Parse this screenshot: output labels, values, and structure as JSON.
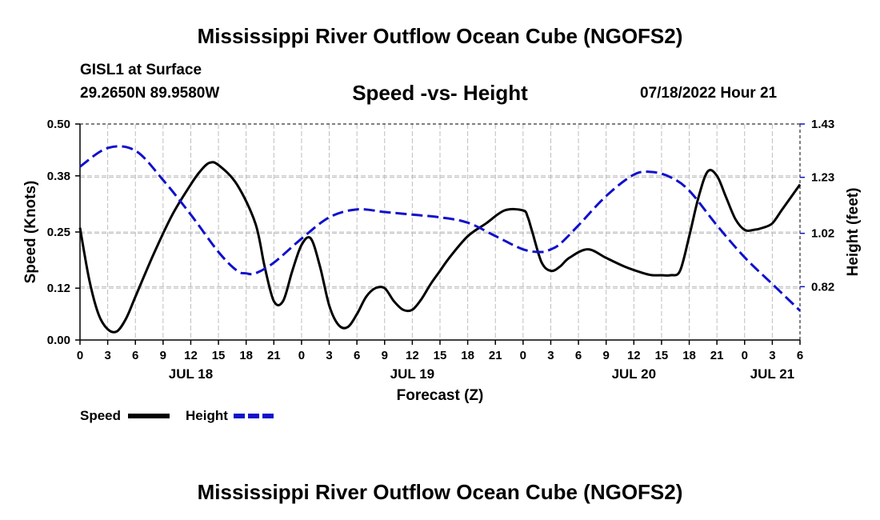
{
  "header": {
    "title": "Mississippi River Outflow Ocean Cube (NGOFS2)",
    "title_repeat": "Mississippi River Outflow Ocean Cube (NGOFS2)",
    "station": "GISL1 at Surface",
    "coords": "29.2650N  89.9580W",
    "timestamp": "07/18/2022 Hour 21"
  },
  "colors": {
    "speed": "#000000",
    "height": "#1010cc",
    "grid": "#bdbdbd"
  },
  "chart_data": {
    "type": "line",
    "title": "Speed -vs- Height",
    "xlabel": "Forecast (Z)",
    "ylabel": "Speed (Knots)",
    "y2label": "Height (feet)",
    "x_hours_range": [
      0,
      78
    ],
    "ylim": [
      0,
      0.5
    ],
    "y2lim": [
      0.62,
      1.43
    ],
    "y_ticks": [
      "0.00",
      "0.12",
      "0.25",
      "0.38",
      "0.50"
    ],
    "y2_ticks": [
      "0.82",
      "1.02",
      "1.23",
      "1.43"
    ],
    "y2_tick_values": [
      0.82,
      1.02,
      1.23,
      1.43
    ],
    "x_tick_labels": [
      "0",
      "3",
      "6",
      "9",
      "12",
      "15",
      "18",
      "21",
      "0",
      "3",
      "6",
      "9",
      "12",
      "15",
      "18",
      "21",
      "0",
      "3",
      "6",
      "9",
      "12",
      "15",
      "18",
      "21",
      "0",
      "3",
      "6"
    ],
    "date_labels": [
      {
        "label": "JUL 18",
        "hour": 12
      },
      {
        "label": "JUL 19",
        "hour": 36
      },
      {
        "label": "JUL 20",
        "hour": 60
      },
      {
        "label": "JUL 21",
        "hour": 75
      }
    ],
    "series": [
      {
        "name": "Speed",
        "axis": "left",
        "x": [
          0,
          1,
          2,
          3,
          4,
          5,
          6,
          8,
          10,
          12,
          13,
          14,
          15,
          17,
          19,
          20,
          21,
          22,
          23,
          24,
          25,
          26,
          27,
          28,
          29,
          30,
          31,
          32,
          33,
          34,
          35,
          36,
          37,
          38,
          39,
          40,
          42,
          44,
          46,
          48,
          48.5,
          49,
          50,
          51,
          52,
          53,
          55,
          57,
          59,
          61,
          62,
          63,
          64,
          65,
          66,
          67,
          68,
          69,
          70,
          71,
          72,
          73,
          74,
          75,
          76,
          77,
          78
        ],
        "values": [
          0.26,
          0.14,
          0.06,
          0.025,
          0.02,
          0.05,
          0.1,
          0.2,
          0.29,
          0.36,
          0.39,
          0.41,
          0.405,
          0.36,
          0.27,
          0.17,
          0.09,
          0.09,
          0.16,
          0.22,
          0.235,
          0.17,
          0.08,
          0.035,
          0.03,
          0.06,
          0.1,
          0.12,
          0.12,
          0.09,
          0.07,
          0.07,
          0.095,
          0.13,
          0.16,
          0.19,
          0.24,
          0.27,
          0.3,
          0.3,
          0.285,
          0.25,
          0.18,
          0.16,
          0.17,
          0.19,
          0.21,
          0.19,
          0.17,
          0.155,
          0.15,
          0.15,
          0.15,
          0.16,
          0.24,
          0.33,
          0.39,
          0.38,
          0.33,
          0.28,
          0.255,
          0.255,
          0.26,
          0.27,
          0.3,
          0.33,
          0.36
        ]
      },
      {
        "name": "Height",
        "axis": "right",
        "x": [
          0,
          3,
          6,
          9,
          12,
          15,
          17,
          18,
          19,
          21,
          24,
          27,
          30,
          33,
          36,
          39,
          42,
          45,
          48,
          50,
          51,
          52,
          54,
          57,
          60,
          62,
          64,
          66,
          69,
          72,
          75,
          78
        ],
        "values": [
          1.27,
          1.34,
          1.33,
          1.22,
          1.09,
          0.95,
          0.88,
          0.87,
          0.87,
          0.91,
          1.0,
          1.08,
          1.11,
          1.1,
          1.09,
          1.08,
          1.06,
          1.01,
          0.96,
          0.95,
          0.96,
          0.98,
          1.05,
          1.16,
          1.24,
          1.25,
          1.23,
          1.18,
          1.05,
          0.93,
          0.83,
          0.73
        ]
      }
    ],
    "legend": [
      {
        "label": "Speed",
        "style": "solid"
      },
      {
        "label": "Height",
        "style": "dashed"
      }
    ],
    "legend_position": "bottom-left",
    "grid": true
  }
}
